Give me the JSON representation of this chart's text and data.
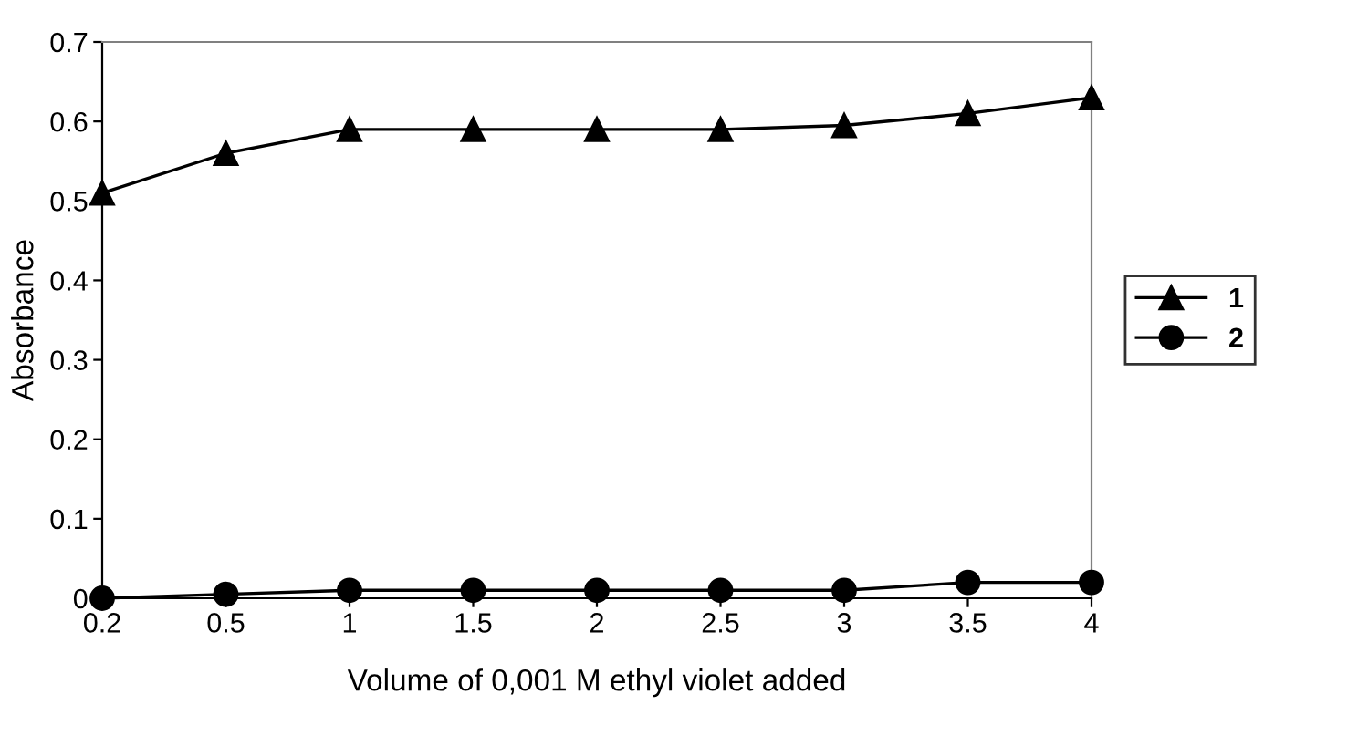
{
  "chart_data": {
    "type": "line",
    "xlabel": "Volume of 0,001 M ethyl violet added",
    "ylabel": "Absorbance",
    "categories": [
      "0.2",
      "0.5",
      "1",
      "1.5",
      "2",
      "2.5",
      "3",
      "3.5",
      "4"
    ],
    "series": [
      {
        "name": "1",
        "color": "#000000",
        "marker": "triangle",
        "values": [
          0.51,
          0.56,
          0.59,
          0.59,
          0.59,
          0.59,
          0.595,
          0.61,
          0.63
        ]
      },
      {
        "name": "2",
        "color": "#000000",
        "marker": "circle",
        "values": [
          0,
          0.005,
          0.01,
          0.01,
          0.01,
          0.01,
          0.01,
          0.02,
          0.02
        ]
      }
    ],
    "ylim": [
      0,
      0.7
    ],
    "yticks": [
      {
        "value": 0,
        "label": "0"
      },
      0.1,
      0.2,
      0.3,
      0.4,
      0.5,
      0.6,
      0.7
    ],
    "grid": false,
    "legend": "right",
    "line_style": "solid"
  }
}
